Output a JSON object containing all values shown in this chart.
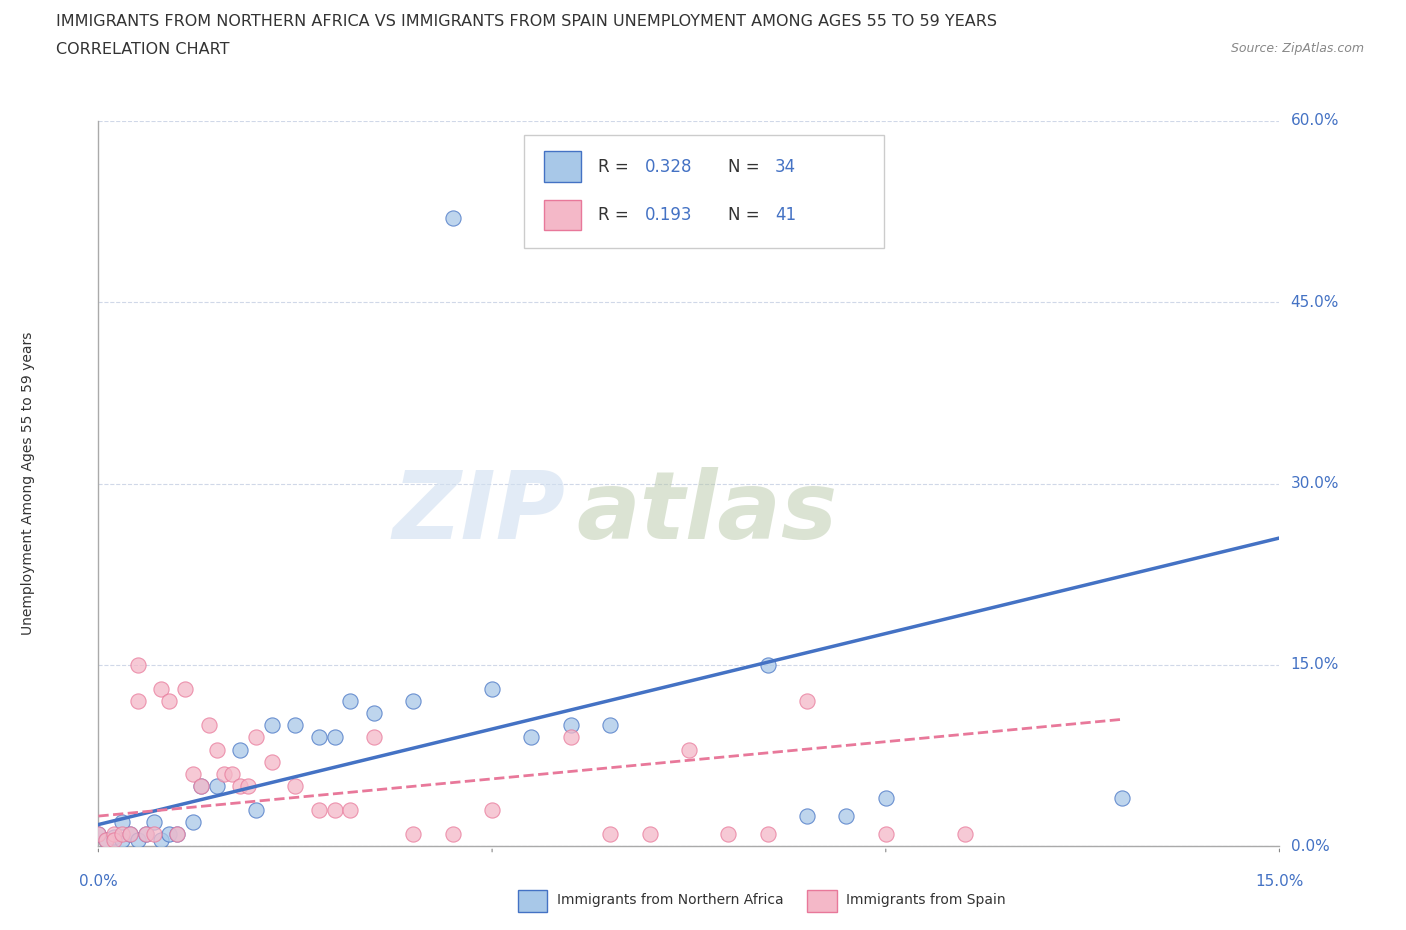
{
  "title_line1": "IMMIGRANTS FROM NORTHERN AFRICA VS IMMIGRANTS FROM SPAIN UNEMPLOYMENT AMONG AGES 55 TO 59 YEARS",
  "title_line2": "CORRELATION CHART",
  "source_text": "Source: ZipAtlas.com",
  "ylabel_label": "Unemployment Among Ages 55 to 59 years",
  "watermark_zip": "ZIP",
  "watermark_atlas": "atlas",
  "legend1_R": "0.328",
  "legend1_N": "34",
  "legend2_R": "0.193",
  "legend2_N": "41",
  "color_blue": "#a8c8e8",
  "color_pink": "#f4b8c8",
  "color_blue_line": "#4472c4",
  "color_pink_line": "#e8789a",
  "color_axis_label": "#4472c4",
  "gridline_color": "#d0d8e8",
  "xlim": [
    0.0,
    0.15
  ],
  "ylim": [
    0.0,
    0.6
  ],
  "yticks": [
    0.0,
    0.15,
    0.3,
    0.45,
    0.6
  ],
  "ytick_labels": [
    "0.0%",
    "15.0%",
    "30.0%",
    "45.0%",
    "60.0%"
  ],
  "blue_scatter_x": [
    0.0,
    0.001,
    0.002,
    0.003,
    0.003,
    0.004,
    0.005,
    0.006,
    0.007,
    0.008,
    0.009,
    0.01,
    0.012,
    0.013,
    0.015,
    0.018,
    0.02,
    0.022,
    0.025,
    0.028,
    0.03,
    0.032,
    0.035,
    0.04,
    0.045,
    0.05,
    0.055,
    0.06,
    0.065,
    0.085,
    0.09,
    0.095,
    0.1,
    0.13
  ],
  "blue_scatter_y": [
    0.01,
    0.005,
    0.008,
    0.005,
    0.02,
    0.01,
    0.005,
    0.01,
    0.02,
    0.005,
    0.01,
    0.01,
    0.02,
    0.05,
    0.05,
    0.08,
    0.03,
    0.1,
    0.1,
    0.09,
    0.09,
    0.12,
    0.11,
    0.12,
    0.52,
    0.13,
    0.09,
    0.1,
    0.1,
    0.15,
    0.025,
    0.025,
    0.04,
    0.04
  ],
  "pink_scatter_x": [
    0.0,
    0.001,
    0.002,
    0.002,
    0.003,
    0.004,
    0.005,
    0.005,
    0.006,
    0.007,
    0.008,
    0.009,
    0.01,
    0.011,
    0.012,
    0.013,
    0.014,
    0.015,
    0.016,
    0.017,
    0.018,
    0.019,
    0.02,
    0.022,
    0.025,
    0.028,
    0.03,
    0.032,
    0.035,
    0.04,
    0.045,
    0.05,
    0.06,
    0.065,
    0.07,
    0.075,
    0.08,
    0.085,
    0.09,
    0.1,
    0.11
  ],
  "pink_scatter_y": [
    0.01,
    0.005,
    0.01,
    0.005,
    0.01,
    0.01,
    0.15,
    0.12,
    0.01,
    0.01,
    0.13,
    0.12,
    0.01,
    0.13,
    0.06,
    0.05,
    0.1,
    0.08,
    0.06,
    0.06,
    0.05,
    0.05,
    0.09,
    0.07,
    0.05,
    0.03,
    0.03,
    0.03,
    0.09,
    0.01,
    0.01,
    0.03,
    0.09,
    0.01,
    0.01,
    0.08,
    0.01,
    0.01,
    0.12,
    0.01,
    0.01
  ],
  "blue_line_x": [
    0.0,
    0.15
  ],
  "blue_line_y": [
    0.018,
    0.255
  ],
  "pink_line_x": [
    0.0,
    0.13
  ],
  "pink_line_y": [
    0.025,
    0.105
  ]
}
